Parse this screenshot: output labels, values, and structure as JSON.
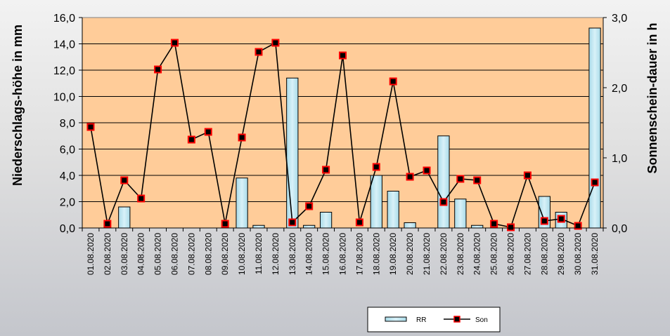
{
  "chart_data": {
    "type": "bar+line",
    "categories": [
      "01.08.2020",
      "02.08.2020",
      "03.08.2020",
      "04.08.2020",
      "05.08.2020",
      "06.08.2020",
      "07.08.2020",
      "08.08.2020",
      "09.08.2020",
      "10.08.2020",
      "11.08.2020",
      "12.08.2020",
      "13.08.2020",
      "14.08.2020",
      "15.08.2020",
      "16.08.2020",
      "17.08.2020",
      "18.08.2020",
      "19.08.2020",
      "20.08.2020",
      "21.08.2020",
      "22.08.2020",
      "23.08.2020",
      "24.08.2020",
      "25.08.2020",
      "26.08.2020",
      "27.08.2020",
      "28.08.2020",
      "29.08.2020",
      "30.08.2020",
      "31.08.2020"
    ],
    "series": [
      {
        "name": "RR",
        "type": "bar",
        "axis": "left",
        "values": [
          0,
          0,
          1.6,
          0,
          0,
          0,
          0,
          0,
          0,
          3.8,
          0.2,
          0,
          11.4,
          0.2,
          1.2,
          0,
          0,
          4.0,
          2.8,
          0.4,
          0,
          7.0,
          2.2,
          0.2,
          0,
          0,
          0,
          2.4,
          1.2,
          0,
          15.2
        ]
      },
      {
        "name": "Son",
        "type": "line",
        "axis": "right",
        "values": [
          1.44,
          0.06,
          0.68,
          0.42,
          2.26,
          2.64,
          1.26,
          1.37,
          0.06,
          1.29,
          2.51,
          2.64,
          0.08,
          0.31,
          0.83,
          2.46,
          0.08,
          0.87,
          2.09,
          0.73,
          0.82,
          0.37,
          0.7,
          0.68,
          0.06,
          0.01,
          0.75,
          0.1,
          0.13,
          0.03,
          0.65
        ]
      }
    ],
    "ylabel": "Niederschlags-höhe in mm",
    "y2label": "Sonnenschein-dauer in h",
    "ylim": [
      0,
      16
    ],
    "y2lim": [
      0,
      3
    ],
    "yticks": [
      "0,0",
      "2,0",
      "4,0",
      "6,0",
      "8,0",
      "10,0",
      "12,0",
      "14,0",
      "16,0"
    ],
    "y2ticks": [
      "0,0",
      "1,0",
      "2,0",
      "3,0"
    ],
    "grid": "horizontal",
    "legend_position": "bottom",
    "colors": {
      "plot_background": "#FFCC99",
      "bar_fill": "#BDE4EF",
      "bar_stroke": "#000000",
      "line": "#000000",
      "marker_fill": "#000000",
      "marker_stroke": "#FF0000"
    }
  }
}
